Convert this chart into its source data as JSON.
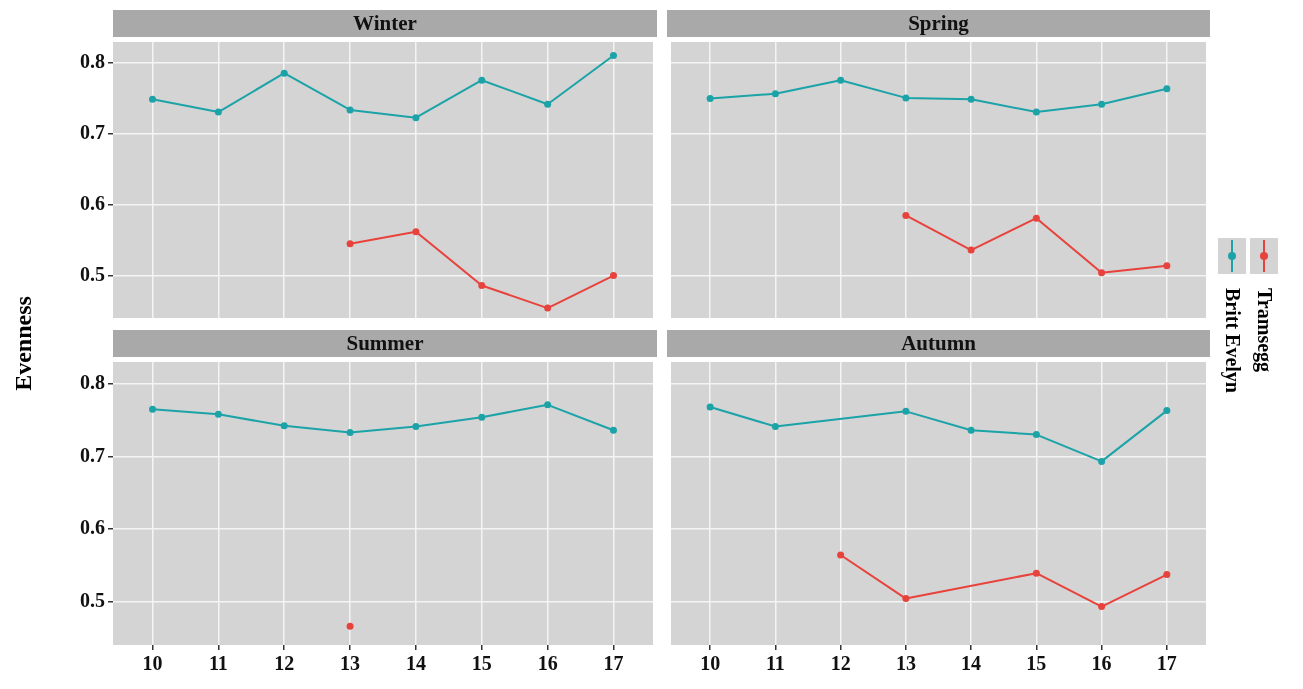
{
  "chart_data": [
    {
      "type": "line",
      "title": "Winter",
      "ylabel": "Evenness",
      "x": [
        10,
        11,
        12,
        13,
        14,
        15,
        16,
        17
      ],
      "xlim": [
        9.4,
        17.6
      ],
      "ylim": [
        0.44,
        0.83
      ],
      "xticks": [
        10,
        11,
        12,
        13,
        14,
        15,
        16,
        17
      ],
      "yticks": [
        0.5,
        0.6,
        0.7,
        0.8
      ],
      "grid": true,
      "marker": "circle",
      "tick_labels": "y",
      "legend": "right",
      "series": [
        {
          "name": "Britt Evelyn",
          "color": "#1ba3a8",
          "values": [
            0.749,
            0.731,
            0.786,
            0.734,
            0.723,
            0.776,
            0.742,
            0.811
          ]
        },
        {
          "name": "Tramsegg",
          "color": "#e8423c",
          "values": [
            null,
            null,
            null,
            0.545,
            0.562,
            0.486,
            0.454,
            0.5
          ]
        }
      ]
    },
    {
      "type": "line",
      "title": "Spring",
      "x": [
        10,
        11,
        12,
        13,
        14,
        15,
        16,
        17
      ],
      "xlim": [
        9.4,
        17.6
      ],
      "ylim": [
        0.44,
        0.83
      ],
      "xticks": [
        10,
        11,
        12,
        13,
        14,
        15,
        16,
        17
      ],
      "yticks": [
        0.5,
        0.6,
        0.7,
        0.8
      ],
      "grid": true,
      "marker": "circle",
      "tick_labels": false,
      "series": [
        {
          "color": "#1ba3a8",
          "values": [
            0.75,
            0.757,
            0.776,
            0.751,
            0.749,
            0.731,
            0.742,
            0.764
          ]
        },
        {
          "color": "#e8423c",
          "values": [
            null,
            null,
            null,
            0.585,
            0.536,
            0.581,
            0.504,
            0.514
          ]
        }
      ]
    },
    {
      "type": "line",
      "title": "Summer",
      "x": [
        10,
        11,
        12,
        13,
        14,
        15,
        16,
        17
      ],
      "xlim": [
        9.4,
        17.6
      ],
      "ylim": [
        0.44,
        0.83
      ],
      "xticks": [
        10,
        11,
        12,
        13,
        14,
        15,
        16,
        17
      ],
      "yticks": [
        0.5,
        0.6,
        0.7,
        0.8
      ],
      "grid": true,
      "marker": "circle",
      "series": [
        {
          "color": "#1ba3a8",
          "values": [
            0.765,
            0.758,
            0.742,
            0.733,
            0.741,
            0.754,
            0.771,
            0.736
          ]
        },
        {
          "color": "#e8423c",
          "values": [
            null,
            null,
            null,
            0.466,
            null,
            null,
            null,
            null
          ]
        }
      ]
    },
    {
      "type": "line",
      "title": "Autumn",
      "x": [
        10,
        11,
        12,
        13,
        14,
        15,
        16,
        17
      ],
      "xlim": [
        9.4,
        17.6
      ],
      "ylim": [
        0.44,
        0.83
      ],
      "xticks": [
        10,
        11,
        12,
        13,
        14,
        15,
        16,
        17
      ],
      "yticks": [
        0.5,
        0.6,
        0.7,
        0.8
      ],
      "grid": true,
      "marker": "circle",
      "tick_labels": "x",
      "series": [
        {
          "color": "#1ba3a8",
          "values": [
            0.768,
            0.741,
            null,
            0.762,
            0.736,
            0.73,
            0.693,
            0.763
          ]
        },
        {
          "color": "#e8423c",
          "values": [
            null,
            null,
            0.564,
            0.504,
            null,
            0.539,
            0.493,
            0.537
          ]
        }
      ]
    }
  ]
}
